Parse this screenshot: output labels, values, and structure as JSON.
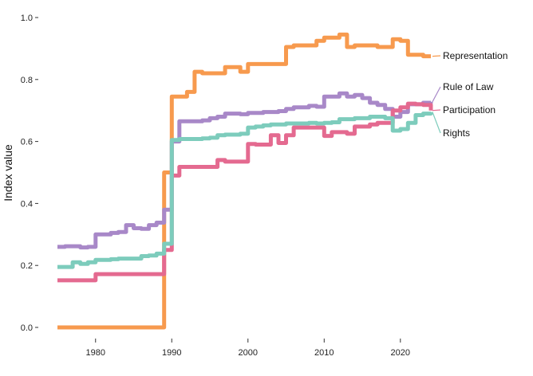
{
  "chart_data": {
    "type": "line",
    "title": "",
    "xlabel": "",
    "ylabel": "Index value",
    "xlim": [
      1975,
      2024
    ],
    "ylim": [
      0,
      1.0
    ],
    "x_ticks": [
      1980,
      1990,
      2000,
      2010,
      2020
    ],
    "x_tick_labels": [
      "1980",
      "1990",
      "2000",
      "2010",
      "2020"
    ],
    "y_ticks": [
      0,
      0.2,
      0.4,
      0.6,
      0.8,
      1.0
    ],
    "y_tick_labels": [
      "0.0",
      "0.2",
      "0.4",
      "0.6",
      "0.8",
      "1.0"
    ],
    "grid": false,
    "legend": "direct labels at line ends (right)",
    "x": [
      1975,
      1976,
      1977,
      1978,
      1979,
      1980,
      1981,
      1982,
      1983,
      1984,
      1985,
      1986,
      1987,
      1988,
      1989,
      1990,
      1991,
      1992,
      1993,
      1994,
      1995,
      1996,
      1997,
      1998,
      1999,
      2000,
      2001,
      2002,
      2003,
      2004,
      2005,
      2006,
      2007,
      2008,
      2009,
      2010,
      2011,
      2012,
      2013,
      2014,
      2015,
      2016,
      2017,
      2018,
      2019,
      2020,
      2021,
      2022,
      2023,
      2024
    ],
    "series": [
      {
        "name": "Representation",
        "color": "#F79A4E",
        "values": [
          0,
          0,
          0,
          0,
          0,
          0,
          0,
          0,
          0,
          0,
          0,
          0,
          0,
          0,
          0.5,
          0.745,
          0.745,
          0.76,
          0.825,
          0.82,
          0.82,
          0.82,
          0.84,
          0.84,
          0.825,
          0.85,
          0.85,
          0.85,
          0.85,
          0.85,
          0.905,
          0.91,
          0.91,
          0.91,
          0.925,
          0.935,
          0.935,
          0.945,
          0.905,
          0.91,
          0.91,
          0.91,
          0.905,
          0.905,
          0.93,
          0.925,
          0.88,
          0.88,
          0.875,
          0.875
        ]
      },
      {
        "name": "Rule of Law",
        "color": "#A888C8",
        "values": [
          0.26,
          0.262,
          0.262,
          0.258,
          0.26,
          0.3,
          0.3,
          0.305,
          0.308,
          0.33,
          0.32,
          0.318,
          0.33,
          0.338,
          0.38,
          0.6,
          0.665,
          0.665,
          0.665,
          0.668,
          0.675,
          0.68,
          0.69,
          0.69,
          0.688,
          0.692,
          0.692,
          0.695,
          0.695,
          0.698,
          0.705,
          0.71,
          0.71,
          0.715,
          0.712,
          0.745,
          0.745,
          0.755,
          0.745,
          0.75,
          0.74,
          0.725,
          0.718,
          0.705,
          0.68,
          0.695,
          0.72,
          0.72,
          0.725,
          0.728
        ]
      },
      {
        "name": "Participation",
        "color": "#E46A90",
        "values": [
          0.152,
          0.152,
          0.152,
          0.152,
          0.152,
          0.172,
          0.172,
          0.172,
          0.172,
          0.172,
          0.172,
          0.172,
          0.172,
          0.172,
          0.25,
          0.49,
          0.518,
          0.518,
          0.518,
          0.518,
          0.518,
          0.54,
          0.535,
          0.535,
          0.535,
          0.592,
          0.59,
          0.59,
          0.62,
          0.595,
          0.62,
          0.645,
          0.645,
          0.645,
          0.645,
          0.618,
          0.63,
          0.63,
          0.625,
          0.648,
          0.648,
          0.655,
          0.66,
          0.66,
          0.7,
          0.71,
          0.722,
          0.72,
          0.718,
          0.7
        ]
      },
      {
        "name": "Rights",
        "color": "#7DCCBC",
        "values": [
          0.195,
          0.195,
          0.21,
          0.205,
          0.21,
          0.218,
          0.218,
          0.22,
          0.222,
          0.222,
          0.222,
          0.23,
          0.232,
          0.238,
          0.27,
          0.605,
          0.608,
          0.608,
          0.608,
          0.61,
          0.612,
          0.62,
          0.622,
          0.622,
          0.625,
          0.645,
          0.648,
          0.652,
          0.655,
          0.655,
          0.658,
          0.658,
          0.658,
          0.66,
          0.658,
          0.66,
          0.662,
          0.672,
          0.672,
          0.675,
          0.675,
          0.68,
          0.68,
          0.675,
          0.635,
          0.64,
          0.66,
          0.685,
          0.69,
          0.695
        ]
      }
    ]
  }
}
